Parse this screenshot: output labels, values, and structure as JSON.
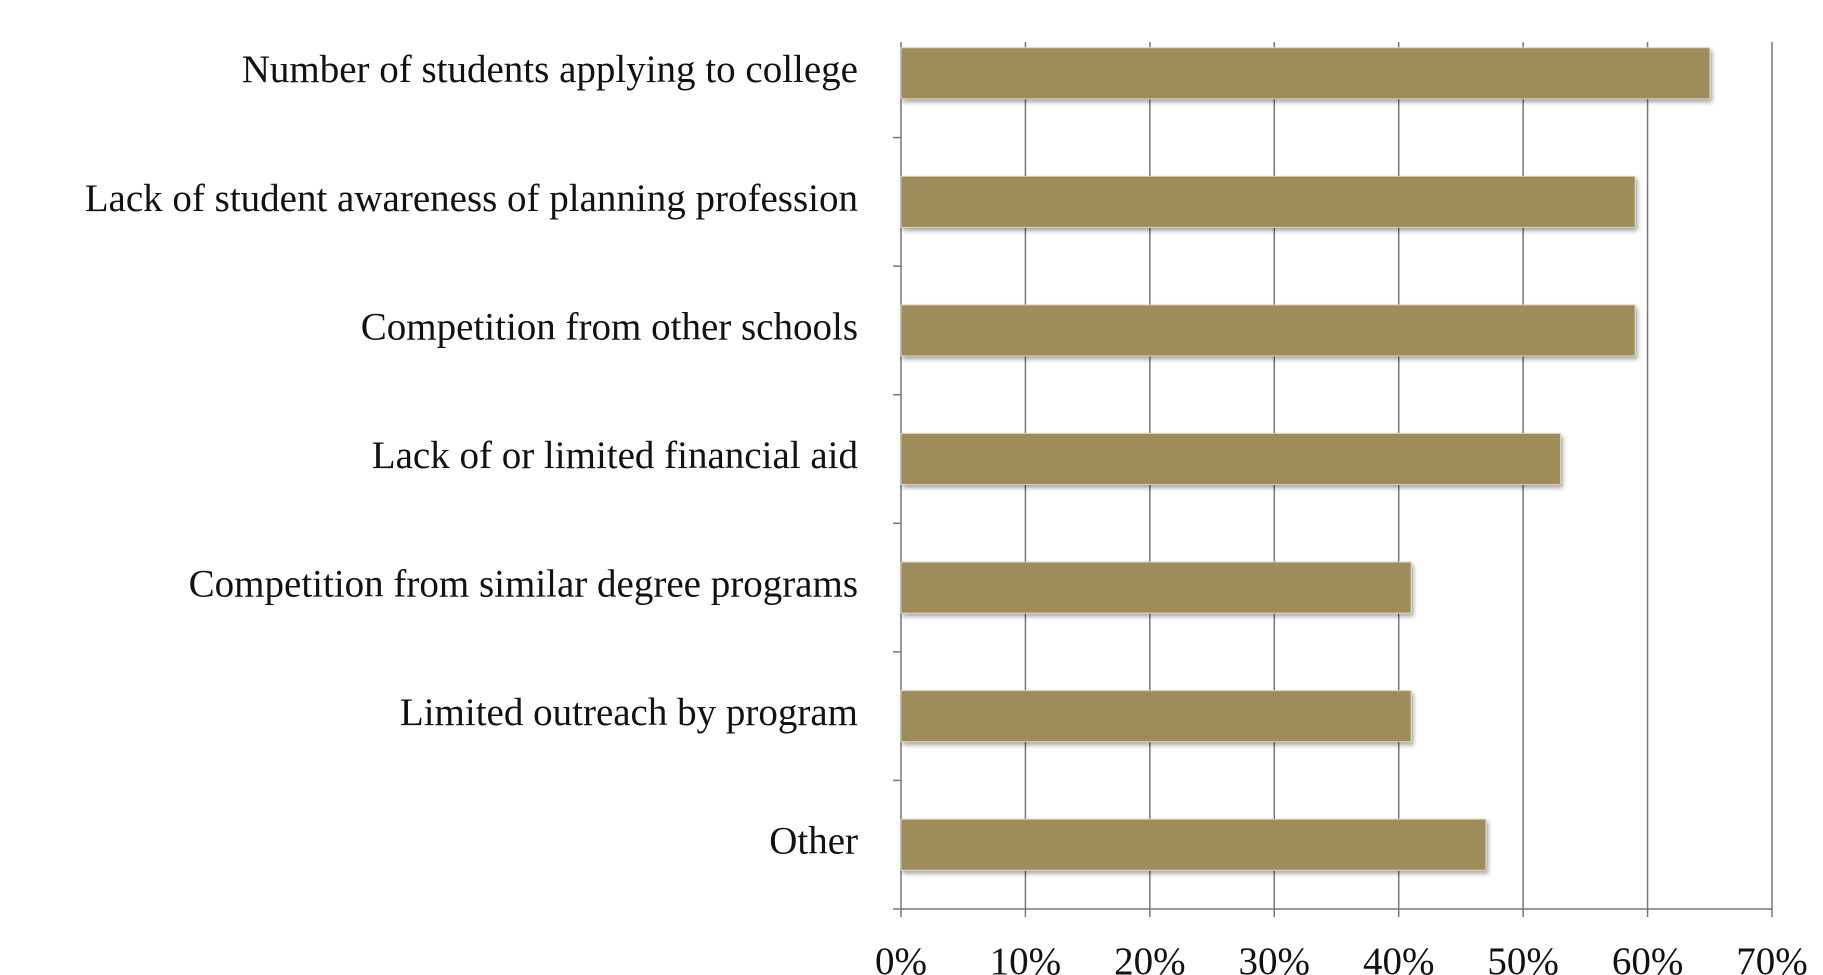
{
  "chart_data": {
    "type": "bar",
    "orientation": "horizontal",
    "categories": [
      "Number of students applying to college",
      "Lack of student awareness of planning profession",
      "Competition from other schools",
      "Lack of or limited financial aid",
      "Competition from similar degree programs",
      "Limited outreach by program",
      "Other"
    ],
    "values": [
      65,
      59,
      59,
      53,
      41,
      41,
      47
    ],
    "color": "#9e8c5a",
    "xlim": [
      0,
      70
    ],
    "xticks": [
      {
        "value": 0,
        "label": "0%"
      },
      {
        "value": 10,
        "label": "10%"
      },
      {
        "value": 20,
        "label": "20%"
      },
      {
        "value": 30,
        "label": "30%"
      },
      {
        "value": 40,
        "label": "40%"
      },
      {
        "value": 50,
        "label": "50%"
      },
      {
        "value": 60,
        "label": "60%"
      },
      {
        "value": 70,
        "label": "70%"
      }
    ],
    "grid": true
  }
}
